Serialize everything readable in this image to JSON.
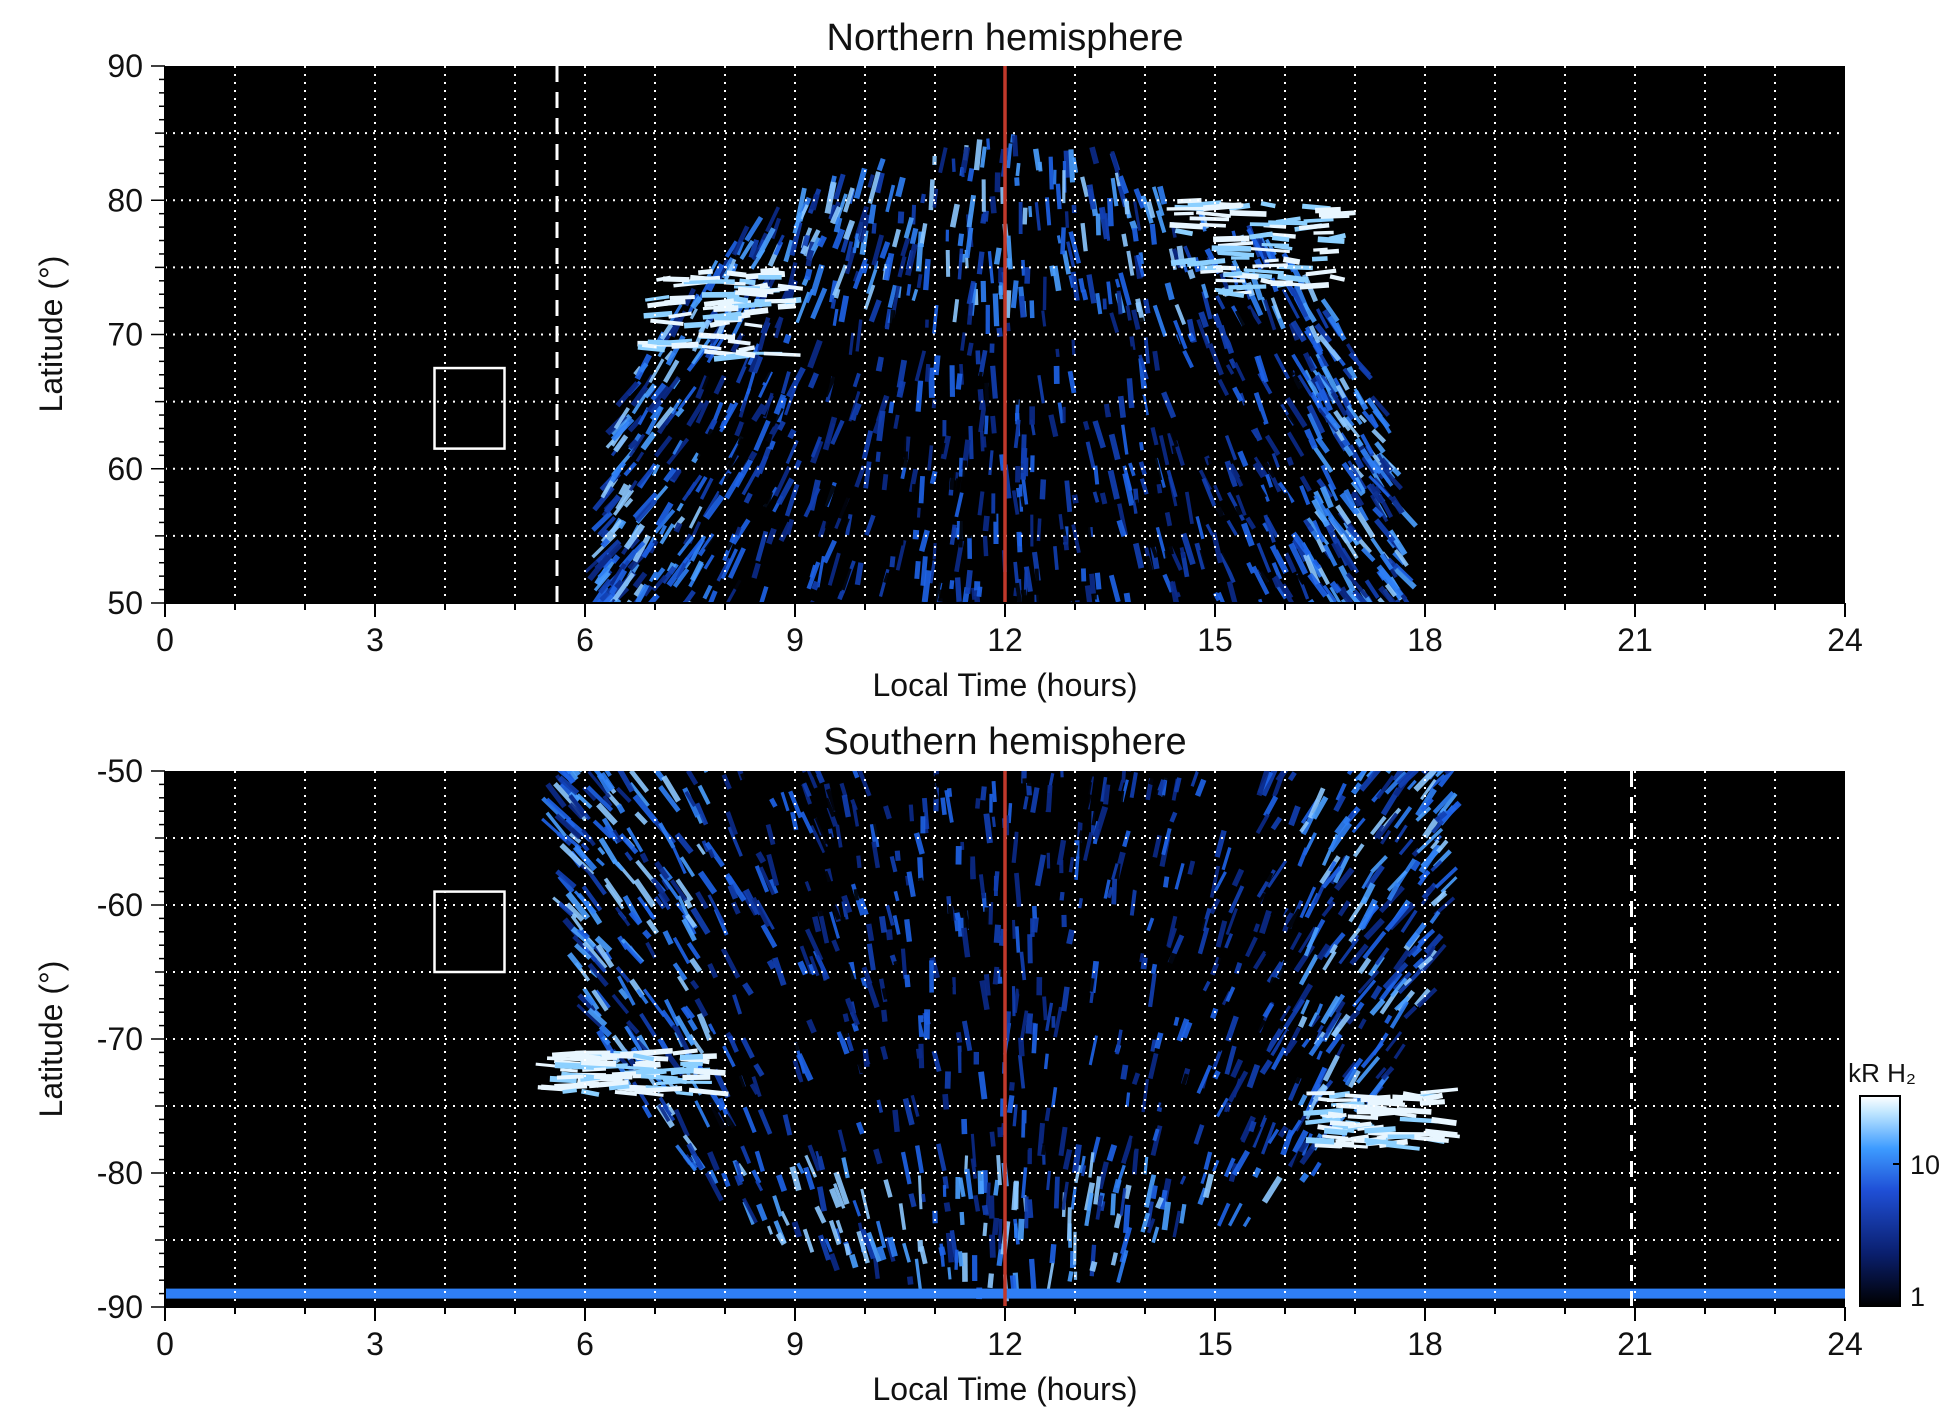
{
  "chart_data": [
    {
      "type": "heatmap",
      "title": "Northern hemisphere",
      "xlabel": "Local Time (hours)",
      "ylabel": "Latitude (°)",
      "xlim": [
        0,
        24
      ],
      "ylim": [
        50,
        90
      ],
      "x_ticks": [
        "0",
        "3",
        "6",
        "9",
        "12",
        "15",
        "18",
        "21",
        "24"
      ],
      "y_ticks": [
        "50",
        "60",
        "70",
        "80",
        "90"
      ],
      "grid": true,
      "markers": {
        "noon_line_local_time": 12,
        "dashed_line_local_time": 5.6,
        "box": {
          "local_time": [
            3.85,
            4.85
          ],
          "latitude": [
            61.5,
            67.5
          ]
        }
      },
      "emission": {
        "dayside_extent_local_time": [
          6.3,
          17.6
        ],
        "max_latitude": 85,
        "bright_arcs": [
          {
            "local_time": [
              6.9,
              9.0
            ],
            "latitude": [
              68,
              75
            ]
          },
          {
            "local_time": [
              14.5,
              16.8
            ],
            "latitude": [
              73,
              80
            ]
          }
        ]
      }
    },
    {
      "type": "heatmap",
      "title": "Southern hemisphere",
      "xlabel": "Local Time (hours)",
      "ylabel": "Latitude (°)",
      "xlim": [
        0,
        24
      ],
      "ylim": [
        -90,
        -50
      ],
      "x_ticks": [
        "0",
        "3",
        "6",
        "9",
        "12",
        "15",
        "18",
        "21",
        "24"
      ],
      "y_ticks": [
        "-50",
        "-60",
        "-70",
        "-80",
        "-90"
      ],
      "grid": true,
      "markers": {
        "noon_line_local_time": 12,
        "dashed_line_local_time": 20.95,
        "box": {
          "local_time": [
            3.85,
            4.85
          ],
          "latitude": [
            -65,
            -59
          ]
        }
      },
      "emission": {
        "dayside_extent_local_time": [
          5.7,
          18.3
        ],
        "polar_band_latitude": -89,
        "bright_arcs": [
          {
            "local_time": [
              5.5,
              7.8
            ],
            "latitude": [
              -74,
              -71
            ]
          },
          {
            "local_time": [
              16.5,
              18.3
            ],
            "latitude": [
              -78,
              -74
            ]
          }
        ]
      }
    }
  ],
  "colorbar": {
    "label": "kR H₂",
    "ticks": [
      "10",
      "1"
    ],
    "scale": "log",
    "range": [
      1,
      30
    ],
    "colors": [
      "#000000",
      "#0a1f6e",
      "#1f4fd6",
      "#3d9bff",
      "#bfe6ff",
      "#ffffff"
    ]
  },
  "colors": {
    "background": "#000000",
    "noon_line": "#c0392b",
    "grid": "#ffffff",
    "emission_low": "#0b2a8a",
    "emission_mid": "#1e63e8",
    "emission_high": "#e8f6ff"
  }
}
